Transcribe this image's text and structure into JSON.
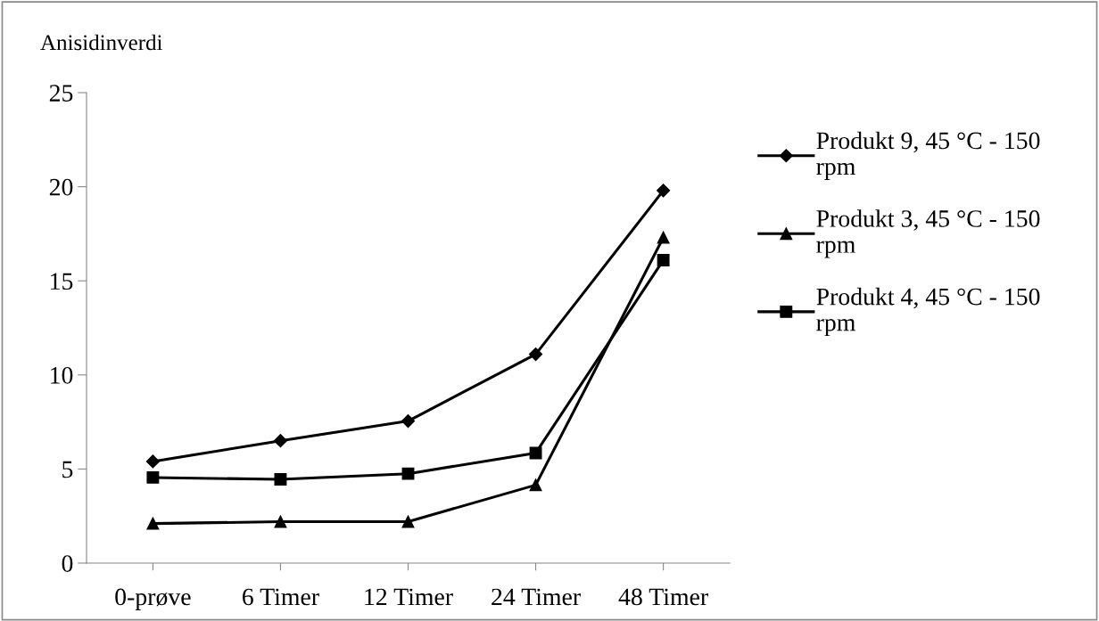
{
  "chart_data": {
    "type": "line",
    "ylabel": "Anisidinverdi",
    "categories": [
      "0-prøve",
      "6 Timer",
      "12 Timer",
      "24 Timer",
      "48 Timer"
    ],
    "series": [
      {
        "name": "Produkt 9, 45 °C - 150 rpm",
        "color": "#000000",
        "marker": "diamond",
        "values": [
          5.4,
          6.5,
          7.55,
          11.1,
          19.8
        ]
      },
      {
        "name": "Produkt 3, 45 °C - 150 rpm",
        "color": "#000000",
        "marker": "triangle",
        "values": [
          2.1,
          2.2,
          2.2,
          4.15,
          17.3
        ]
      },
      {
        "name": "Produkt 4, 45 °C - 150 rpm",
        "color": "#000000",
        "marker": "square",
        "values": [
          4.55,
          4.45,
          4.75,
          5.85,
          16.1
        ]
      }
    ],
    "ylim": [
      0,
      25
    ],
    "yticks": [
      0,
      5,
      10,
      15,
      20,
      25
    ],
    "grid": false,
    "legend": "right",
    "line_style": "solid"
  }
}
